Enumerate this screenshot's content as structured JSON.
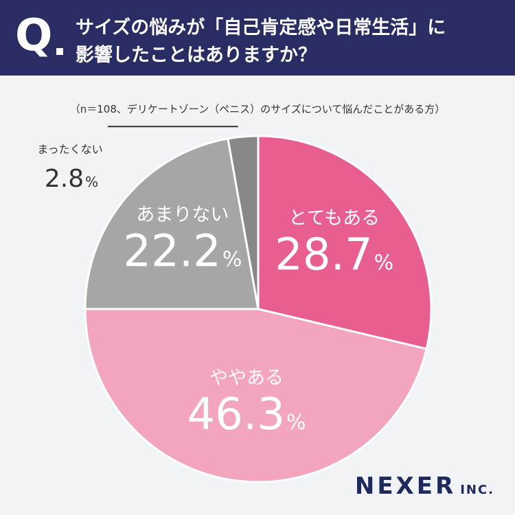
{
  "header": {
    "q_label": "Q",
    "question_line1": "サイズの悩みが「自己肯定感や日常生活」に",
    "question_line2": "影響したことはありますか？"
  },
  "subtitle": "（n＝108、デリケートゾーン（ペニス）のサイズについて悩んだことがある方）",
  "brand": {
    "name": "NEXER",
    "suffix": "INC."
  },
  "colors": {
    "header_bg": "#2a2d63",
    "slice_1": "#e85e90",
    "slice_2": "#f3a4bf",
    "slice_3": "#a6a6a6",
    "slice_4": "#888888"
  },
  "chart_data": {
    "type": "pie",
    "start": "12 o'clock",
    "direction": "clockwise",
    "slices": [
      {
        "label": "とてもある",
        "value": 28.7,
        "display": "28.7",
        "unit": "%"
      },
      {
        "label": "ややある",
        "value": 46.3,
        "display": "46.3",
        "unit": "%"
      },
      {
        "label": "あまりない",
        "value": 22.2,
        "display": "22.2",
        "unit": "%"
      },
      {
        "label": "まったくない",
        "value": 2.8,
        "display": "2.8",
        "unit": "%"
      }
    ]
  }
}
